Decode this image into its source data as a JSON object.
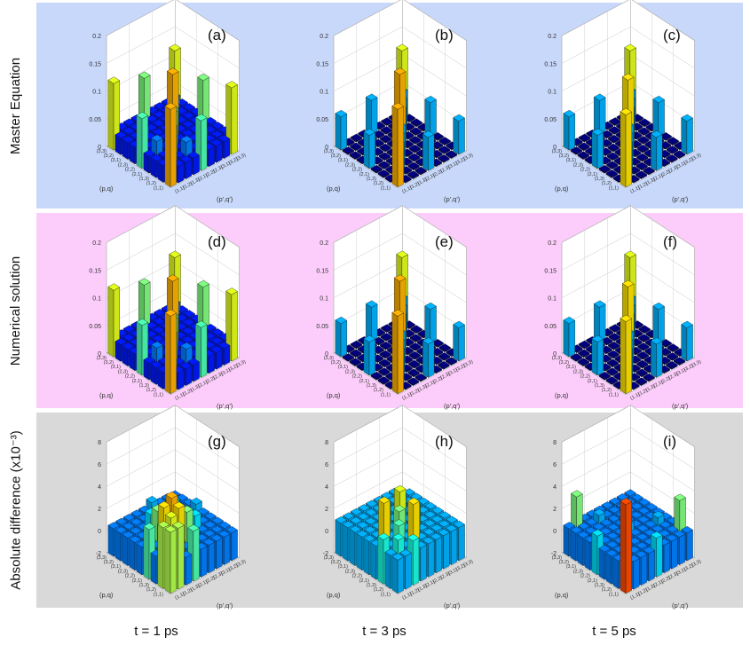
{
  "colors": {
    "row_bg": [
      "#c8d8fa",
      "#fccdfa",
      "#d9d9d9"
    ]
  },
  "row_labels": [
    "Master Equation",
    "Numerical solution",
    "Absolute difference (x10⁻³)"
  ],
  "time_labels": [
    "t = 1 ps",
    "t = 3 ps",
    "t = 5 ps"
  ],
  "axis_labels": {
    "left": "(p,q)",
    "right": "(p',q')",
    "states": [
      "(1,1)",
      "(1,2)",
      "(1,3)",
      "(2,1)",
      "(2,2)",
      "(2,3)",
      "(3,1)",
      "(3,2)",
      "(3,3)"
    ]
  },
  "chart_data": [
    {
      "type": "bar3d",
      "panel": "(a)",
      "row": 0,
      "col": 0,
      "zlim": [
        0,
        0.2
      ],
      "zticks": [
        "0.2",
        "0.15",
        "0.1",
        "0.05",
        "0"
      ],
      "diag": [
        0.14,
        0.09,
        0.1,
        0.09,
        0.14,
        0.06,
        0.05,
        0.05,
        0.12
      ],
      "offdiag": {
        "(1,5)": 0.09,
        "(1,9)": 0.12,
        "(5,9)": 0.1,
        "(2,4)": 0.05,
        "(3,7)": 0.04,
        "(6,8)": 0.03
      },
      "offdiag_level": 0.03
    },
    {
      "type": "bar3d",
      "panel": "(b)",
      "row": 0,
      "col": 1,
      "zlim": [
        0,
        0.2
      ],
      "zticks": [
        "0.2",
        "0.15",
        "0.1",
        "0.05",
        "0"
      ],
      "diag": [
        0.14,
        0.06,
        0.06,
        0.06,
        0.14,
        0.06,
        0.06,
        0.06,
        0.12
      ],
      "offdiag": {
        "(1,5)": 0.06,
        "(1,9)": 0.06,
        "(5,9)": 0.06
      },
      "offdiag_level": 0.0
    },
    {
      "type": "bar3d",
      "panel": "(c)",
      "row": 0,
      "col": 2,
      "zlim": [
        0,
        0.2
      ],
      "zticks": [
        "0.2",
        "0.15",
        "0.1",
        "0.05",
        "0"
      ],
      "diag": [
        0.13,
        0.06,
        0.06,
        0.06,
        0.13,
        0.06,
        0.06,
        0.06,
        0.12
      ],
      "offdiag": {
        "(1,5)": 0.06,
        "(1,9)": 0.06,
        "(5,9)": 0.06
      },
      "offdiag_level": 0.0
    },
    {
      "type": "bar3d",
      "panel": "(d)",
      "row": 1,
      "col": 0,
      "zlim": [
        0,
        0.2
      ],
      "zticks": [
        "0.2",
        "0.15",
        "0.1",
        "0.05",
        "0"
      ],
      "diag": [
        0.14,
        0.09,
        0.1,
        0.09,
        0.14,
        0.06,
        0.05,
        0.05,
        0.12
      ],
      "offdiag": {
        "(1,5)": 0.09,
        "(1,9)": 0.12,
        "(5,9)": 0.1,
        "(2,4)": 0.05,
        "(3,7)": 0.04,
        "(6,8)": 0.03
      },
      "offdiag_level": 0.03
    },
    {
      "type": "bar3d",
      "panel": "(e)",
      "row": 1,
      "col": 1,
      "zlim": [
        0,
        0.2
      ],
      "zticks": [
        "0.2",
        "0.15",
        "0.1",
        "0.05",
        "0"
      ],
      "diag": [
        0.14,
        0.06,
        0.06,
        0.06,
        0.14,
        0.06,
        0.06,
        0.06,
        0.12
      ],
      "offdiag": {
        "(1,5)": 0.06,
        "(1,9)": 0.06,
        "(5,9)": 0.06
      },
      "offdiag_level": 0.0
    },
    {
      "type": "bar3d",
      "panel": "(f)",
      "row": 1,
      "col": 2,
      "zlim": [
        0,
        0.2
      ],
      "zticks": [
        "0.2",
        "0.15",
        "0.1",
        "0.05",
        "0"
      ],
      "diag": [
        0.13,
        0.06,
        0.06,
        0.06,
        0.13,
        0.06,
        0.06,
        0.06,
        0.12
      ],
      "offdiag": {
        "(1,5)": 0.06,
        "(1,9)": 0.06,
        "(5,9)": 0.06
      },
      "offdiag_level": 0.0
    },
    {
      "type": "bar3d",
      "panel": "(g)",
      "row": 2,
      "col": 0,
      "zlim": [
        -2,
        8
      ],
      "zticks": [
        "8",
        "6",
        "4",
        "2",
        "0",
        "-2"
      ],
      "diag": [
        3.5,
        4.0,
        5.0,
        2.0,
        3.0,
        2.0,
        1.5,
        0.8,
        0.4
      ],
      "offdiag": {
        "(1,2)": 3.5,
        "(2,3)": 4.5,
        "(1,4)": 2.5,
        "(3,5)": 3.0,
        "(4,7)": 1.5,
        "(6,9)": 1.0
      },
      "offdiag_level": 0.5
    },
    {
      "type": "bar3d",
      "panel": "(h)",
      "row": 2,
      "col": 1,
      "zlim": [
        -2,
        8
      ],
      "zticks": [
        "8",
        "6",
        "4",
        "2",
        "0",
        "-2"
      ],
      "diag": [
        1.0,
        2.0,
        2.5,
        3.0,
        4.0,
        2.0,
        1.5,
        1.0,
        0.5
      ],
      "offdiag": {
        "(2,4)": 4.5,
        "(3,5)": 3.5,
        "(4,6)": 2.5,
        "(1,3)": 2.0
      },
      "offdiag_level": 1.0
    },
    {
      "type": "bar3d",
      "panel": "(i)",
      "row": 2,
      "col": 2,
      "zlim": [
        -2,
        8
      ],
      "zticks": [
        "8",
        "6",
        "4",
        "2",
        "0",
        "-2"
      ],
      "diag": [
        6.0,
        0.5,
        0.5,
        0.5,
        1.0,
        0.5,
        0.5,
        0.5,
        0.5
      ],
      "offdiag": {
        "(2,9)": 3.0,
        "(1,5)": 1.5,
        "(4,8)": 1.0
      },
      "offdiag_level": 0.5
    }
  ]
}
